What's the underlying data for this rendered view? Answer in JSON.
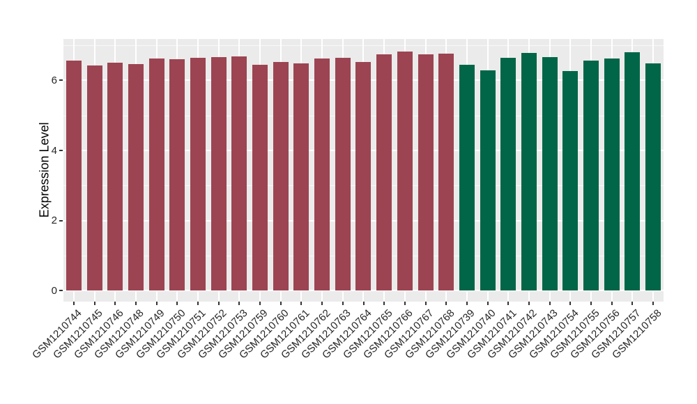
{
  "figure": {
    "background": "#FFFFFF",
    "panel_background": "#EBEBEB",
    "grid_color": "#FFFFFF",
    "tick_color": "#333333",
    "text_color": "#262626"
  },
  "chart_data": {
    "type": "bar",
    "title": "",
    "xlabel": "",
    "ylabel": "Expression Level",
    "yticks": [
      0,
      2,
      4,
      6
    ],
    "minor_gridlines": [
      1,
      3,
      5,
      7
    ],
    "ylim": [
      -0.31,
      7.18
    ],
    "grid": "on",
    "legend": "none",
    "categories": [
      "GSM1210744",
      "GSM1210745",
      "GSM1210746",
      "GSM1210748",
      "GSM1210749",
      "GSM1210750",
      "GSM1210751",
      "GSM1210752",
      "GSM1210753",
      "GSM1210759",
      "GSM1210760",
      "GSM1210761",
      "GSM1210762",
      "GSM1210763",
      "GSM1210764",
      "GSM1210765",
      "GSM1210766",
      "GSM1210767",
      "GSM1210768",
      "GSM1210739",
      "GSM1210740",
      "GSM1210741",
      "GSM1210742",
      "GSM1210743",
      "GSM1210754",
      "GSM1210755",
      "GSM1210756",
      "GSM1210757",
      "GSM1210758"
    ],
    "values": [
      6.57,
      6.42,
      6.51,
      6.47,
      6.63,
      6.61,
      6.65,
      6.66,
      6.68,
      6.44,
      6.53,
      6.49,
      6.63,
      6.65,
      6.52,
      6.74,
      6.82,
      6.74,
      6.76,
      6.45,
      6.29,
      6.64,
      6.79,
      6.66,
      6.27,
      6.57,
      6.63,
      6.81,
      6.49
    ],
    "groups": [
      "g1",
      "g1",
      "g1",
      "g1",
      "g1",
      "g1",
      "g1",
      "g1",
      "g1",
      "g1",
      "g1",
      "g1",
      "g1",
      "g1",
      "g1",
      "g1",
      "g1",
      "g1",
      "g1",
      "g2",
      "g2",
      "g2",
      "g2",
      "g2",
      "g2",
      "g2",
      "g2",
      "g2",
      "g2"
    ],
    "group_colors": {
      "g1": "#9C4452",
      "g2": "#006647"
    }
  }
}
